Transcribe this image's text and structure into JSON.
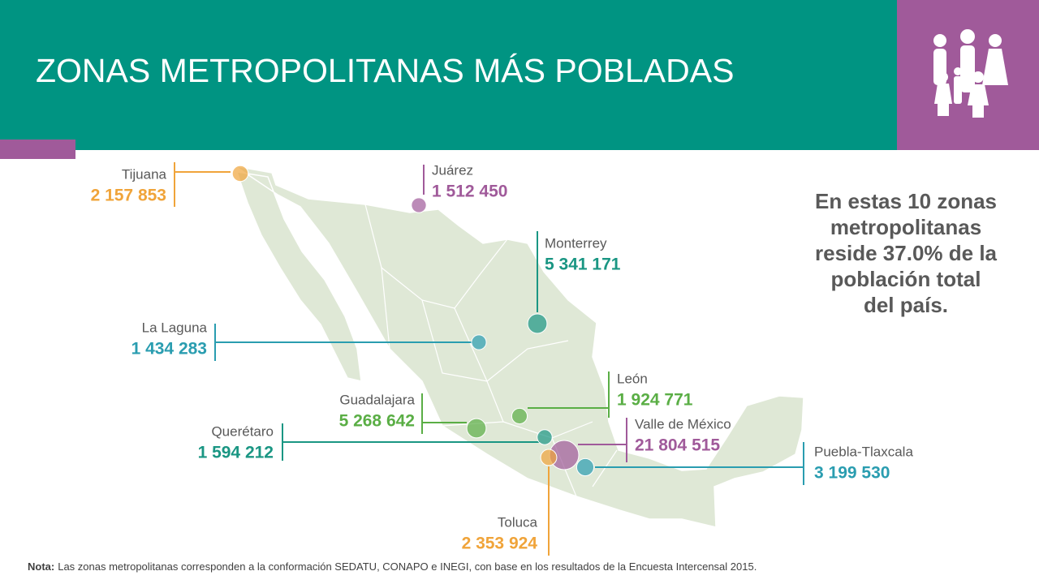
{
  "header": {
    "title": "ZONAS METROPOLITANAS MÁS POBLADAS"
  },
  "zones": [
    {
      "name": "Tijuana",
      "value": 2157853,
      "label": "2 157 853",
      "color": "#f0a43a"
    },
    {
      "name": "Juárez",
      "value": 1512450,
      "label": "1 512 450",
      "color": "#a05a9a"
    },
    {
      "name": "Monterrey",
      "value": 5341171,
      "label": "5 341 171",
      "color": "#1a9683"
    },
    {
      "name": "La Laguna",
      "value": 1434283,
      "label": "1 434 283",
      "color": "#2a9db0"
    },
    {
      "name": "Guadalajara",
      "value": 5268642,
      "label": "5 268 642",
      "color": "#5aae45"
    },
    {
      "name": "León",
      "value": 1924771,
      "label": "1 924 771",
      "color": "#5aae45"
    },
    {
      "name": "Querétaro",
      "value": 1594212,
      "label": "1 594 212",
      "color": "#1a9683"
    },
    {
      "name": "Valle de México",
      "value": 21804515,
      "label": "21 804 515",
      "color": "#a05a9a"
    },
    {
      "name": "Puebla-Tlaxcala",
      "value": 3199530,
      "label": "3 199 530",
      "color": "#2a9db0"
    },
    {
      "name": "Toluca",
      "value": 2353924,
      "label": "2 353 924",
      "color": "#f0a43a"
    }
  ],
  "summary": {
    "lines": [
      "En estas 10 zonas",
      "metropolitanas",
      "reside 37.0% de la",
      "población total",
      "del país."
    ]
  },
  "note": {
    "label": "Nota:",
    "text": "Las zonas metropolitanas corresponden a la conformación SEDATU, CONAPO e INEGI, con base en los resultados de la Encuesta Intercensal 2015."
  }
}
